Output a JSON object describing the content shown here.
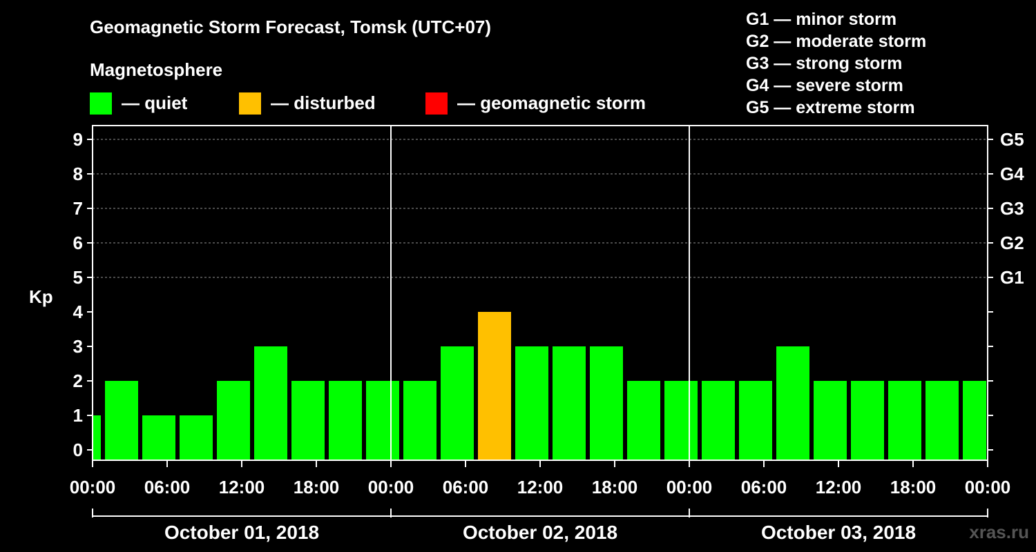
{
  "title": "Geomagnetic Storm Forecast, Tomsk (UTC+07)",
  "legend": {
    "title": "Magnetosphere",
    "items": [
      {
        "label": "— quiet",
        "color": "#00ff00"
      },
      {
        "label": "— disturbed",
        "color": "#ffc000"
      },
      {
        "label": "— geomagnetic storm",
        "color": "#ff0000"
      }
    ]
  },
  "storm_levels": [
    "G1 — minor storm",
    "G2 — moderate storm",
    "G3 — strong storm",
    "G4 — severe storm",
    "G5 — extreme storm"
  ],
  "source": "xras.ru",
  "chart_data": {
    "type": "bar",
    "title": "Geomagnetic Storm Forecast, Tomsk (UTC+07)",
    "ylabel": "Kp",
    "ylim": [
      0,
      9
    ],
    "yticks": [
      "0",
      "1",
      "2",
      "3",
      "4",
      "5",
      "6",
      "7",
      "8",
      "9"
    ],
    "right_ticks": [
      {
        "kp": 5,
        "label": "G1"
      },
      {
        "kp": 6,
        "label": "G2"
      },
      {
        "kp": 7,
        "label": "G3"
      },
      {
        "kp": 8,
        "label": "G4"
      },
      {
        "kp": 9,
        "label": "G5"
      }
    ],
    "xticks": [
      "00:00",
      "06:00",
      "12:00",
      "18:00",
      "00:00",
      "06:00",
      "12:00",
      "18:00",
      "00:00",
      "06:00",
      "12:00",
      "18:00",
      "00:00"
    ],
    "days": [
      "October 01, 2018",
      "October 02, 2018",
      "October 03, 2018"
    ],
    "interval_hours": 3,
    "first_bar_start_hour": -2,
    "values": [
      1,
      2,
      1,
      1,
      2,
      3,
      2,
      2,
      2,
      2,
      3,
      4,
      3,
      3,
      3,
      2,
      2,
      2,
      2,
      3,
      2,
      2,
      2,
      2,
      2
    ],
    "colors": {
      "quiet": "#00ff00",
      "disturbed": "#ffc000",
      "storm": "#ff0000"
    }
  }
}
